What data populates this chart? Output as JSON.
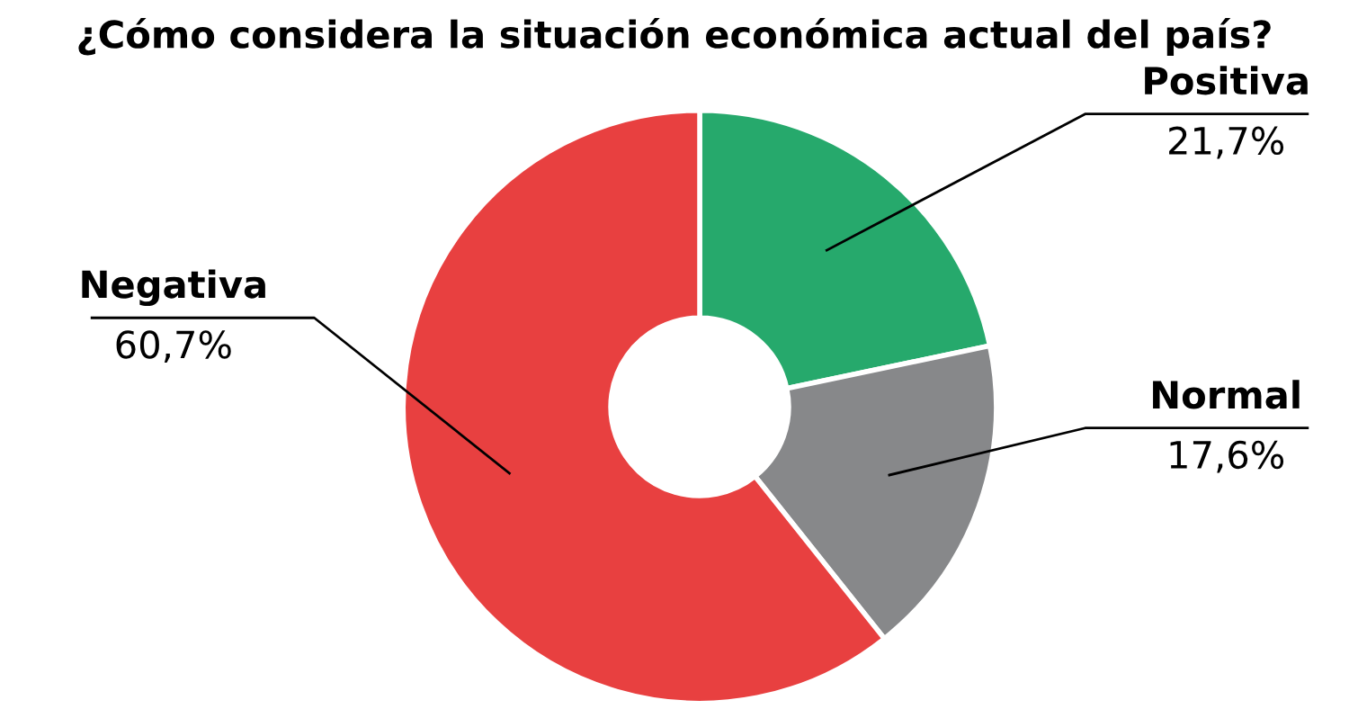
{
  "chart_data": {
    "type": "donut",
    "title": "¿Cómo considera la situación económica actual del país?",
    "categories": [
      "Positiva",
      "Normal",
      "Negativa"
    ],
    "values": [
      21.7,
      17.6,
      60.7
    ],
    "value_labels": [
      "21,7%",
      "17,6%",
      "60,7%"
    ],
    "colors": [
      "#26a96c",
      "#87888a",
      "#e84040"
    ],
    "legend": false
  }
}
